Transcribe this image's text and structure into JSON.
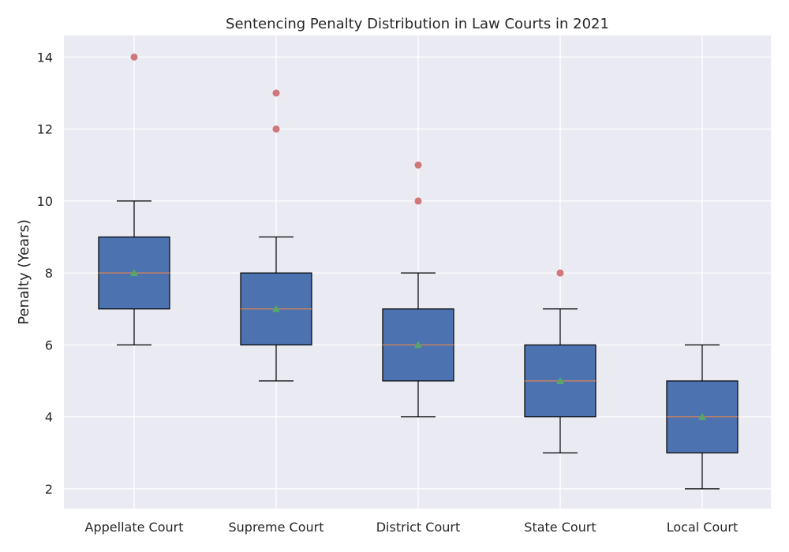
{
  "chart_data": {
    "type": "box",
    "title": "Sentencing Penalty Distribution in Law Courts in 2021",
    "xlabel": "",
    "ylabel": "Penalty (Years)",
    "ylim": [
      1.45,
      14.6
    ],
    "yticks": [
      2,
      4,
      6,
      8,
      10,
      12,
      14
    ],
    "grid": true,
    "categories": [
      "Appellate Court",
      "Supreme Court",
      "District Court",
      "State Court",
      "Local Court"
    ],
    "boxes": [
      {
        "whisker_low": 6,
        "q1": 7,
        "median": 8,
        "q3": 9,
        "whisker_high": 10,
        "mean": 8,
        "outliers": [
          14
        ]
      },
      {
        "whisker_low": 5,
        "q1": 6,
        "median": 7,
        "q3": 8,
        "whisker_high": 9,
        "mean": 7,
        "outliers": [
          12,
          13
        ]
      },
      {
        "whisker_low": 4,
        "q1": 5,
        "median": 6,
        "q3": 7,
        "whisker_high": 8,
        "mean": 6,
        "outliers": [
          10,
          11
        ]
      },
      {
        "whisker_low": 3,
        "q1": 4,
        "median": 5,
        "q3": 6,
        "whisker_high": 7,
        "mean": 5,
        "outliers": [
          8
        ]
      },
      {
        "whisker_low": 2,
        "q1": 3,
        "median": 4,
        "q3": 5,
        "whisker_high": 6,
        "mean": 4,
        "outliers": []
      }
    ],
    "colors": {
      "background": "#eaeaf2",
      "grid": "#ffffff",
      "box_fill": "#4c72b0",
      "box_edge": "#000000",
      "whisker": "#000000",
      "median": "#dd8452",
      "mean_marker": "#55a868",
      "outlier": "#c44e52"
    }
  }
}
